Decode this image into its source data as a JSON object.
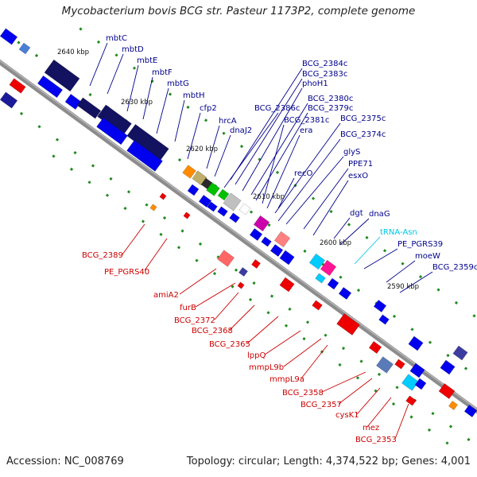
{
  "title": "Mycobacterium bovis BCG str. Pasteur 1173P2, complete genome",
  "footer": {
    "accession": "Accession: NC_008769",
    "topology": "Topology: circular; Length: 4,374,522 bp; Genes: 4,001"
  },
  "colors": {
    "forward_label": "#00008b",
    "reverse_label": "#cc0000",
    "rna_label": "#00c8e6",
    "forward_gene": "#0000ee",
    "reverse_gene": "#ee0000",
    "backbone": "#888888",
    "tick": "#228b22"
  },
  "scale_labels": [
    "2640 kbp",
    "2630 kbp",
    "2620 kbp",
    "2610 kbp",
    "2600 kbp",
    "2590 kbp"
  ],
  "forward_labels": [
    "mbtC",
    "mbtD",
    "mbtE",
    "mbtF",
    "mbtG",
    "mbtH",
    "cfp2",
    "hrcA",
    "dnaJ2",
    "BCG_2386c",
    "BCG_2384c",
    "BCG_2383c",
    "phoH1",
    "BCG_2380c",
    "BCG_2379c",
    "BCG_2381c",
    "era",
    "BCG_2375c",
    "BCG_2374c",
    "glyS",
    "recO",
    "PPE71",
    "esxO",
    "dgt",
    "dnaG",
    "PE_PGRS39",
    "moeW",
    "BCG_2359c"
  ],
  "rna_labels": [
    "tRNA-Asn"
  ],
  "reverse_labels": [
    "BCG_2389",
    "PE_PGRS40",
    "amiA2",
    "furB",
    "BCG_2372",
    "BCG_2368",
    "BCG_2365",
    "lppQ",
    "mmpL9b",
    "mmpL9a",
    "BCG_2358",
    "BCG_2357",
    "cysK1",
    "mez",
    "BCG_2353"
  ]
}
